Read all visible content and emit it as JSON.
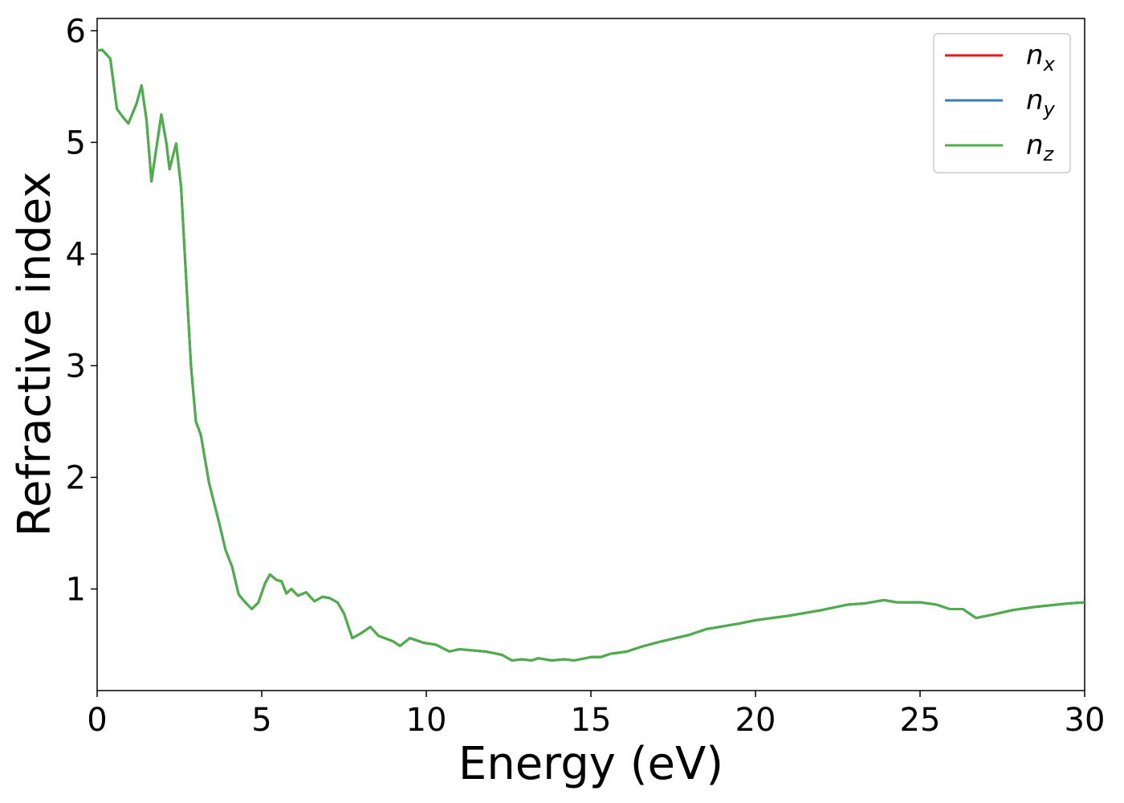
{
  "chart_data": {
    "type": "line",
    "xlabel": "Energy (eV)",
    "ylabel": "Refractive index",
    "x": [
      0,
      0.15,
      0.4,
      0.6,
      0.8,
      0.95,
      1.2,
      1.35,
      1.5,
      1.65,
      1.8,
      1.95,
      2.1,
      2.2,
      2.4,
      2.55,
      2.7,
      2.85,
      3.0,
      3.15,
      3.4,
      3.7,
      3.9,
      4.1,
      4.3,
      4.5,
      4.7,
      4.9,
      5.1,
      5.25,
      5.45,
      5.6,
      5.75,
      5.9,
      6.1,
      6.35,
      6.6,
      6.85,
      7.05,
      7.3,
      7.5,
      7.75,
      8.0,
      8.3,
      8.55,
      9.0,
      9.2,
      9.5,
      9.9,
      10.3,
      10.7,
      11.0,
      11.8,
      12.3,
      12.6,
      12.9,
      13.2,
      13.4,
      13.8,
      14.2,
      14.5,
      15.0,
      15.3,
      15.6,
      16.1,
      16.5,
      17.0,
      18.0,
      18.5,
      19.5,
      20.0,
      21.0,
      22.0,
      22.8,
      23.3,
      23.9,
      24.3,
      24.6,
      25.0,
      25.5,
      25.9,
      26.3,
      26.7,
      27.2,
      27.8,
      28.5,
      29.5,
      30
    ],
    "series": [
      {
        "name": "nx",
        "color": "#e41a1c",
        "values": [
          5.82,
          5.83,
          5.75,
          5.3,
          5.22,
          5.17,
          5.35,
          5.51,
          5.2,
          4.65,
          4.95,
          5.25,
          5.0,
          4.76,
          4.99,
          4.6,
          3.8,
          3.0,
          2.5,
          2.38,
          1.95,
          1.6,
          1.35,
          1.2,
          0.95,
          0.88,
          0.82,
          0.88,
          1.05,
          1.13,
          1.08,
          1.07,
          0.96,
          1.0,
          0.94,
          0.97,
          0.89,
          0.93,
          0.92,
          0.88,
          0.78,
          0.56,
          0.6,
          0.66,
          0.58,
          0.53,
          0.49,
          0.56,
          0.52,
          0.5,
          0.44,
          0.46,
          0.44,
          0.41,
          0.36,
          0.37,
          0.36,
          0.38,
          0.36,
          0.37,
          0.36,
          0.39,
          0.39,
          0.42,
          0.44,
          0.48,
          0.52,
          0.59,
          0.64,
          0.69,
          0.72,
          0.76,
          0.81,
          0.86,
          0.87,
          0.9,
          0.88,
          0.88,
          0.88,
          0.86,
          0.82,
          0.82,
          0.74,
          0.77,
          0.81,
          0.84,
          0.87,
          0.88
        ]
      },
      {
        "name": "ny",
        "color": "#377eb8",
        "values": [
          5.82,
          5.83,
          5.75,
          5.3,
          5.22,
          5.17,
          5.35,
          5.51,
          5.2,
          4.65,
          4.95,
          5.25,
          5.0,
          4.76,
          4.99,
          4.6,
          3.8,
          3.0,
          2.5,
          2.38,
          1.95,
          1.6,
          1.35,
          1.2,
          0.95,
          0.88,
          0.82,
          0.88,
          1.05,
          1.13,
          1.08,
          1.07,
          0.96,
          1.0,
          0.94,
          0.97,
          0.89,
          0.93,
          0.92,
          0.88,
          0.78,
          0.56,
          0.6,
          0.66,
          0.58,
          0.53,
          0.49,
          0.56,
          0.52,
          0.5,
          0.44,
          0.46,
          0.44,
          0.41,
          0.36,
          0.37,
          0.36,
          0.38,
          0.36,
          0.37,
          0.36,
          0.39,
          0.39,
          0.42,
          0.44,
          0.48,
          0.52,
          0.59,
          0.64,
          0.69,
          0.72,
          0.76,
          0.81,
          0.86,
          0.87,
          0.9,
          0.88,
          0.88,
          0.88,
          0.86,
          0.82,
          0.82,
          0.74,
          0.77,
          0.81,
          0.84,
          0.87,
          0.88
        ]
      },
      {
        "name": "nz",
        "color": "#4daf4a",
        "values": [
          5.82,
          5.83,
          5.75,
          5.3,
          5.22,
          5.17,
          5.35,
          5.51,
          5.2,
          4.65,
          4.95,
          5.25,
          5.0,
          4.76,
          4.99,
          4.6,
          3.8,
          3.0,
          2.5,
          2.38,
          1.95,
          1.6,
          1.35,
          1.2,
          0.95,
          0.88,
          0.82,
          0.88,
          1.05,
          1.13,
          1.08,
          1.07,
          0.96,
          1.0,
          0.94,
          0.97,
          0.89,
          0.93,
          0.92,
          0.88,
          0.78,
          0.56,
          0.6,
          0.66,
          0.58,
          0.53,
          0.49,
          0.56,
          0.52,
          0.5,
          0.44,
          0.46,
          0.44,
          0.41,
          0.36,
          0.37,
          0.36,
          0.38,
          0.36,
          0.37,
          0.36,
          0.39,
          0.39,
          0.42,
          0.44,
          0.48,
          0.52,
          0.59,
          0.64,
          0.69,
          0.72,
          0.76,
          0.81,
          0.86,
          0.87,
          0.9,
          0.88,
          0.88,
          0.88,
          0.86,
          0.82,
          0.82,
          0.74,
          0.77,
          0.81,
          0.84,
          0.87,
          0.88
        ]
      }
    ],
    "xlim": [
      0,
      30
    ],
    "xticks": [
      0,
      5,
      10,
      15,
      20,
      25,
      30
    ],
    "ylim": [
      0.09,
      6.11
    ],
    "yticks": [
      1,
      2,
      3,
      4,
      5,
      6
    ],
    "legend": "upper right",
    "grid": false
  }
}
